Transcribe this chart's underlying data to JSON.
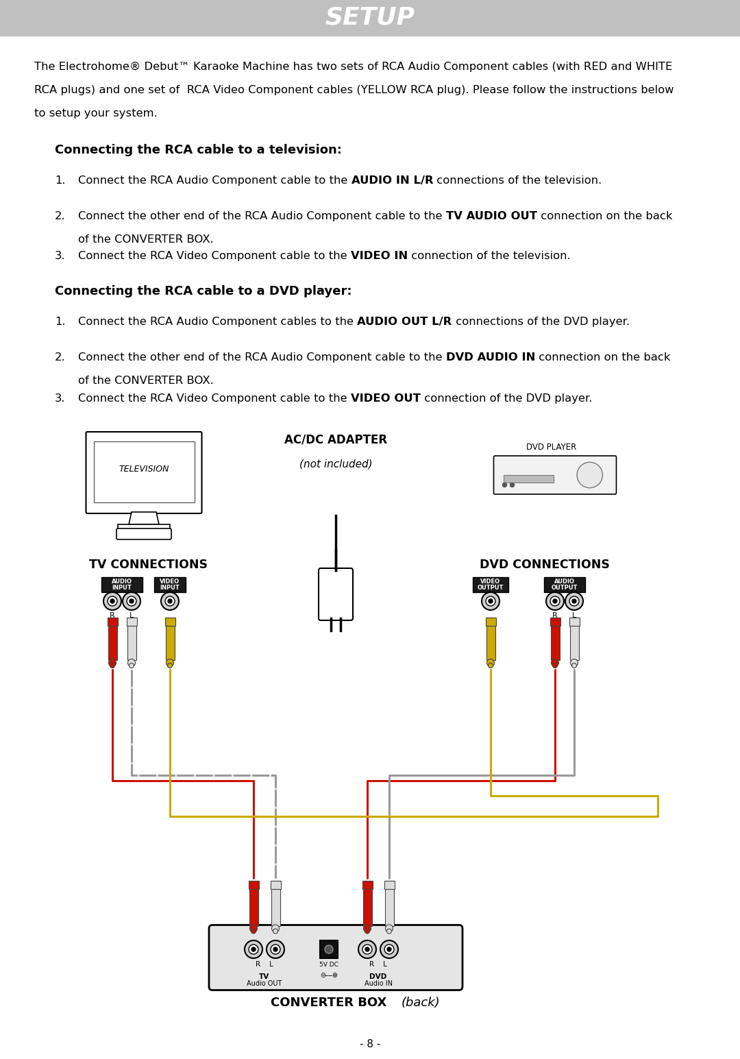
{
  "bg_color": "#ffffff",
  "header_bg": "#c0c0c0",
  "header_text": "SETUP",
  "header_text_color": "#ffffff",
  "intro_text_line1": "The Electrohome® Debut™ Karaoke Machine has two sets of RCA Audio Component cables (with RED and WHITE",
  "intro_text_line2": "RCA plugs) and one set of  RCA Video Component cables (YELLOW RCA plug). Please follow the instructions below",
  "intro_text_line3": "to setup your system.",
  "section1_title": "Connecting the RCA cable to a television:",
  "section2_title": "Connecting the RCA cable to a DVD player:",
  "s1_item1_normal1": "Connect the RCA Audio Component cable to the ",
  "s1_item1_bold": "AUDIO IN L/R",
  "s1_item1_normal2": " connections of the television.",
  "s1_item2_normal1": "Connect the other end of the RCA Audio Component cable to the ",
  "s1_item2_bold": "TV AUDIO OUT",
  "s1_item2_normal2": " connection on the back",
  "s1_item2_line2": "of the CONVERTER BOX.",
  "s1_item3_normal1": "Connect the RCA Video Component cable to the ",
  "s1_item3_bold": "VIDEO IN",
  "s1_item3_normal2": " connection of the television.",
  "s2_item1_normal1": "Connect the RCA Audio Component cables to the ",
  "s2_item1_bold": "AUDIO OUT L/R",
  "s2_item1_normal2": " connections of the DVD player.",
  "s2_item2_normal1": "Connect the other end of the RCA Audio Component cable to the ",
  "s2_item2_bold": "DVD AUDIO IN",
  "s2_item2_normal2": " connection on the back",
  "s2_item2_line2": "of the CONVERTER BOX.",
  "s2_item3_normal1": "Connect the RCA Video Component cable to the ",
  "s2_item3_bold": "VIDEO OUT",
  "s2_item3_normal2": " connection of the DVD player.",
  "lbl_television": "TELEVISION",
  "lbl_dvd_player": "DVD PLAYER",
  "lbl_tv_connections": "TV CONNECTIONS",
  "lbl_dvd_connections": "DVD CONNECTIONS",
  "lbl_adapter": "AC/DC ADAPTER",
  "lbl_adapter2": "(not included)",
  "lbl_converter": "CONVERTER BOX",
  "lbl_converter2": "(back)",
  "lbl_audio_input": "AUDIO\nINPUT",
  "lbl_video_input": "VIDEO\nINPUT",
  "lbl_video_output": "VIDEO\nOUTPUT",
  "lbl_audio_output": "AUDIO\nOUTPUT",
  "lbl_r": "R",
  "lbl_l": "L",
  "lbl_5vdc": "5V DC",
  "lbl_tv_audio_out": "TV\nAudio OUT",
  "lbl_dvd_audio_in": "DVD\nAudio IN",
  "footer": "- 8 -",
  "red": "#cc1100",
  "white_plug": "#dddddd",
  "yellow": "#ccaa00",
  "black": "#000000",
  "dark_gray": "#222222",
  "med_gray": "#888888",
  "light_gray": "#cccccc",
  "box_fill": "#e5e5e5",
  "wire_lw": 2.2
}
